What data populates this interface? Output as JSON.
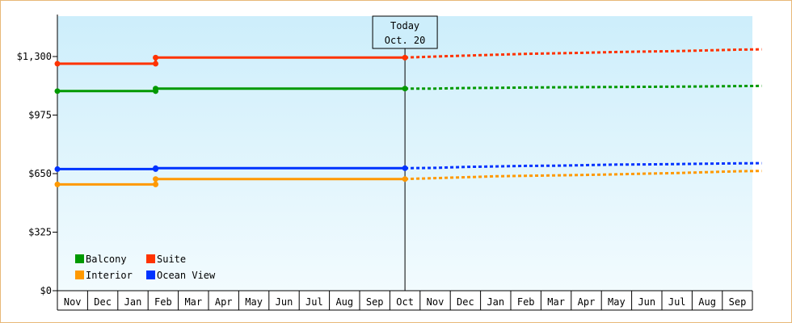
{
  "chart_data": {
    "type": "line",
    "ylim": [
      0,
      1560
    ],
    "yticks": [
      {
        "value": 0,
        "label": "$0"
      },
      {
        "value": 325,
        "label": "$325"
      },
      {
        "value": 650,
        "label": "$650"
      },
      {
        "value": 975,
        "label": "$975"
      },
      {
        "value": 1300,
        "label": "$1,300"
      }
    ],
    "months": [
      "Nov",
      "Dec",
      "Jan",
      "Feb",
      "Mar",
      "Apr",
      "May",
      "Jun",
      "Jul",
      "Aug",
      "Sep",
      "Oct",
      "Nov",
      "Dec",
      "Jan",
      "Feb",
      "Mar",
      "Apr",
      "May",
      "Jun",
      "Jul",
      "Aug",
      "Sep"
    ],
    "today": {
      "line1": "Today",
      "line2": "Oct. 20",
      "x": 11.5
    },
    "grid": false,
    "legend_position": "bottom-left",
    "series": [
      {
        "name": "Suite",
        "color": "#ff3300",
        "history": [
          [
            0,
            1260
          ],
          [
            3.25,
            1260
          ],
          [
            3.25,
            1294
          ],
          [
            11.5,
            1294
          ]
        ],
        "forecast": [
          [
            11.5,
            1294
          ],
          [
            12.5,
            1300
          ],
          [
            13.5,
            1305
          ],
          [
            14.5,
            1310
          ],
          [
            15.5,
            1315
          ],
          [
            16.5,
            1318
          ],
          [
            17.5,
            1321
          ],
          [
            18.5,
            1325
          ],
          [
            19.5,
            1328
          ],
          [
            20.5,
            1330
          ],
          [
            21.5,
            1334
          ],
          [
            22.5,
            1338
          ],
          [
            23.3,
            1340
          ]
        ]
      },
      {
        "name": "Balcony",
        "color": "#009900",
        "history": [
          [
            0,
            1108
          ],
          [
            3.25,
            1108
          ],
          [
            3.25,
            1122
          ],
          [
            11.5,
            1122
          ]
        ],
        "forecast": [
          [
            11.5,
            1122
          ],
          [
            12.5,
            1122
          ],
          [
            13.5,
            1125
          ],
          [
            14.5,
            1126
          ],
          [
            15.5,
            1128
          ],
          [
            16.5,
            1129
          ],
          [
            17.5,
            1130
          ],
          [
            18.5,
            1131
          ],
          [
            19.5,
            1132
          ],
          [
            20.5,
            1133
          ],
          [
            21.5,
            1134
          ],
          [
            22.5,
            1136
          ],
          [
            23.3,
            1137
          ]
        ]
      },
      {
        "name": "Ocean View",
        "color": "#0033ff",
        "history": [
          [
            0,
            675
          ],
          [
            3.25,
            675
          ],
          [
            3.25,
            680
          ],
          [
            11.5,
            680
          ]
        ],
        "forecast": [
          [
            11.5,
            680
          ],
          [
            12.5,
            682
          ],
          [
            13.5,
            687
          ],
          [
            14.5,
            690
          ],
          [
            15.5,
            693
          ],
          [
            16.5,
            694
          ],
          [
            17.5,
            697
          ],
          [
            18.5,
            700
          ],
          [
            19.5,
            701
          ],
          [
            20.5,
            703
          ],
          [
            21.5,
            705
          ],
          [
            22.5,
            707
          ],
          [
            23.3,
            708
          ]
        ]
      },
      {
        "name": "Interior",
        "color": "#ff9900",
        "history": [
          [
            0,
            590
          ],
          [
            3.25,
            590
          ],
          [
            3.25,
            620
          ],
          [
            11.5,
            620
          ]
        ],
        "forecast": [
          [
            11.5,
            620
          ],
          [
            12.5,
            625
          ],
          [
            13.5,
            630
          ],
          [
            14.5,
            635
          ],
          [
            15.5,
            638
          ],
          [
            16.5,
            640
          ],
          [
            17.5,
            643
          ],
          [
            18.5,
            646
          ],
          [
            19.5,
            650
          ],
          [
            20.5,
            653
          ],
          [
            21.5,
            658
          ],
          [
            22.5,
            663
          ],
          [
            23.3,
            665
          ]
        ]
      }
    ],
    "legend": [
      {
        "label": "Balcony",
        "color": "#009900"
      },
      {
        "label": "Suite",
        "color": "#ff3300"
      },
      {
        "label": "Interior",
        "color": "#ff9900"
      },
      {
        "label": "Ocean View",
        "color": "#0033ff"
      }
    ]
  }
}
